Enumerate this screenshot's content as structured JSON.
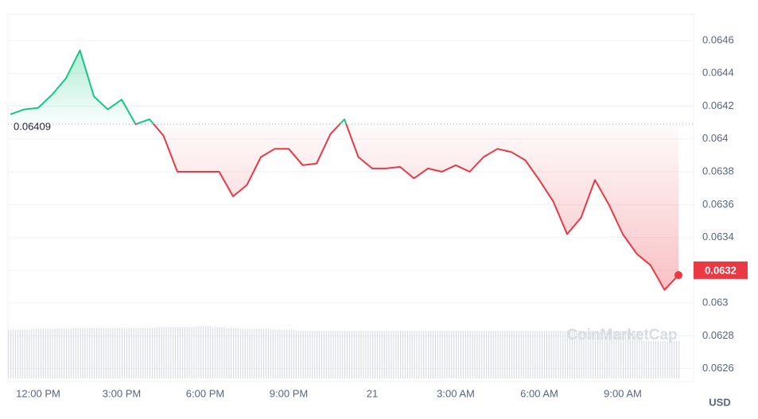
{
  "chart_data": {
    "type": "line",
    "categories": [
      null,
      null,
      "12:00 PM",
      null,
      null,
      null,
      null,
      null,
      "3:00 PM",
      null,
      null,
      null,
      null,
      null,
      "6:00 PM",
      null,
      null,
      null,
      null,
      null,
      "9:00 PM",
      null,
      null,
      null,
      null,
      null,
      "21",
      null,
      null,
      null,
      null,
      null,
      "3:00 AM",
      null,
      null,
      null,
      null,
      null,
      "6:00 AM",
      null,
      null,
      null,
      null,
      null,
      "9:00 AM",
      null,
      null,
      null,
      null
    ],
    "values": [
      0.06415,
      0.06418,
      0.06419,
      0.06427,
      0.06437,
      0.06454,
      0.06426,
      0.06418,
      0.06424,
      0.06409,
      0.06412,
      0.06402,
      0.0638,
      0.0638,
      0.0638,
      0.0638,
      0.06365,
      0.06372,
      0.06389,
      0.06394,
      0.06394,
      0.06384,
      0.06385,
      0.06403,
      0.06412,
      0.06389,
      0.06382,
      0.06382,
      0.06383,
      0.06376,
      0.06382,
      0.0638,
      0.06384,
      0.0638,
      0.06389,
      0.06394,
      0.06392,
      0.06387,
      0.06375,
      0.06362,
      0.06342,
      0.06352,
      0.06375,
      0.0636,
      0.06342,
      0.0633,
      0.06323,
      0.06308,
      0.06317
    ],
    "volume": [
      52,
      52,
      53,
      53,
      53,
      54,
      54,
      54,
      54,
      54,
      54,
      55,
      55,
      55,
      56,
      55,
      54,
      53,
      53,
      52,
      52,
      51,
      51,
      51,
      51,
      51,
      51,
      51,
      51,
      51,
      51,
      51,
      51,
      51,
      51,
      51,
      51,
      51,
      51,
      51,
      51,
      51,
      51,
      51,
      51,
      51,
      40,
      40,
      40
    ],
    "baseline": 0.06409,
    "current_price": 0.0632,
    "up_color": "#16c784",
    "down_color": "#ea3943",
    "ylim": [
      0.06255,
      0.06475
    ],
    "yticks": [
      0.0626,
      0.0628,
      0.063,
      0.0632,
      0.0634,
      0.0636,
      0.0638,
      0.064,
      0.0642,
      0.0644,
      0.0646
    ],
    "currency": "USD",
    "watermark": "CoinMarketCap",
    "grid": true
  }
}
